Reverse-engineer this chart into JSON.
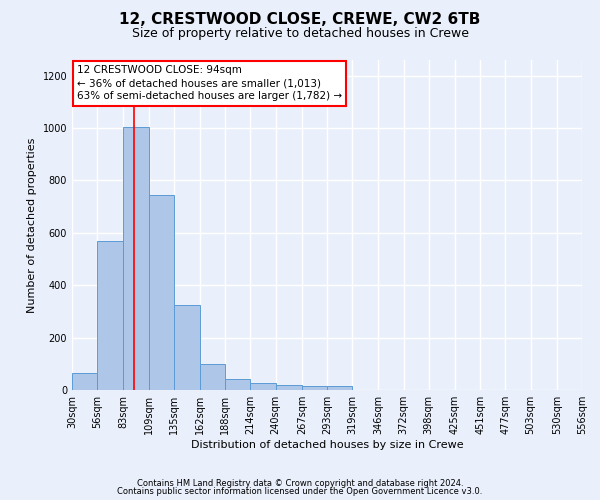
{
  "title1": "12, CRESTWOOD CLOSE, CREWE, CW2 6TB",
  "title2": "Size of property relative to detached houses in Crewe",
  "xlabel": "Distribution of detached houses by size in Crewe",
  "ylabel": "Number of detached properties",
  "categories": [
    "30sqm",
    "56sqm",
    "83sqm",
    "109sqm",
    "135sqm",
    "162sqm",
    "188sqm",
    "214sqm",
    "240sqm",
    "267sqm",
    "293sqm",
    "319sqm",
    "346sqm",
    "372sqm",
    "398sqm",
    "425sqm",
    "451sqm",
    "477sqm",
    "503sqm",
    "530sqm",
    "556sqm"
  ],
  "bar_edges": [
    30,
    56,
    83,
    109,
    135,
    162,
    188,
    214,
    240,
    267,
    293,
    319,
    346,
    372,
    398,
    425,
    451,
    477,
    503,
    530,
    556
  ],
  "bar_heights": [
    65,
    570,
    1005,
    745,
    325,
    100,
    42,
    25,
    18,
    15,
    15,
    0,
    0,
    0,
    0,
    0,
    0,
    0,
    0,
    0
  ],
  "bar_color": "#aec6e8",
  "bar_edge_color": "#5b9bd5",
  "red_line_x": 94,
  "annotation_line1": "12 CRESTWOOD CLOSE: 94sqm",
  "annotation_line2": "← 36% of detached houses are smaller (1,013)",
  "annotation_line3": "63% of semi-detached houses are larger (1,782) →",
  "annotation_box_color": "white",
  "annotation_box_edge": "red",
  "ylim": [
    0,
    1260
  ],
  "yticks": [
    0,
    200,
    400,
    600,
    800,
    1000,
    1200
  ],
  "footer1": "Contains HM Land Registry data © Crown copyright and database right 2024.",
  "footer2": "Contains public sector information licensed under the Open Government Licence v3.0.",
  "bg_color": "#eaf0fb",
  "grid_color": "#ffffff",
  "title1_fontsize": 11,
  "title2_fontsize": 9,
  "xlabel_fontsize": 8,
  "ylabel_fontsize": 8
}
